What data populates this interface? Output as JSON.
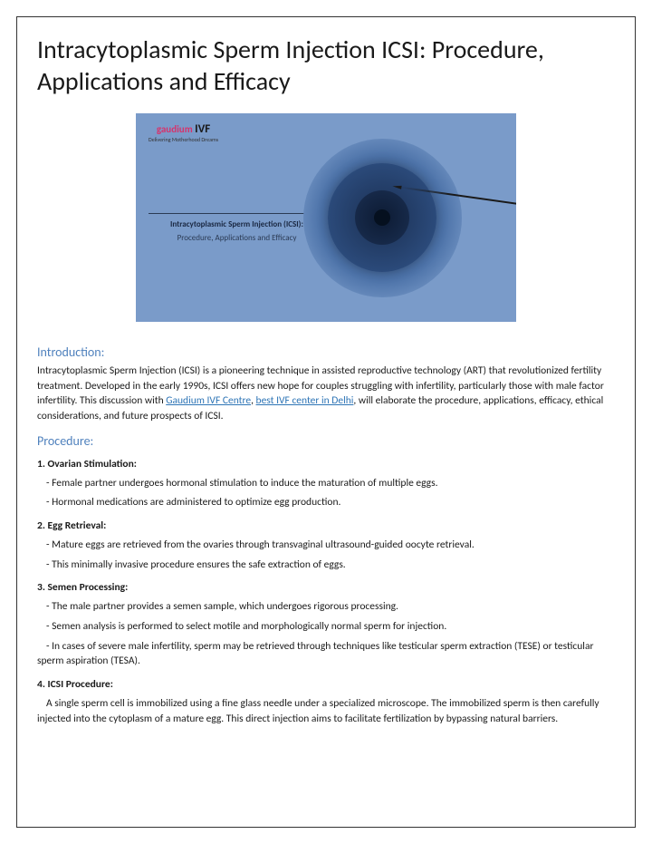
{
  "title": "Intracytoplasmic Sperm Injection ICSI: Procedure, Applications and Efficacy",
  "hero": {
    "logo_brand": "gaudium",
    "logo_ivf": "IVF",
    "logo_tag": "Delivering Motherhood Dreams",
    "heading": "Intracytoplasmic Sperm Injection (ICSI):",
    "sub": "Procedure, Applications and Efficacy",
    "bg_color": "#7a9bc9",
    "egg_colors": [
      "#7a9bc9",
      "#4c72a8",
      "#2b4a7a",
      "#1a2f52",
      "#0d1b33",
      "#05101f"
    ]
  },
  "sections": {
    "intro_head": "Introduction:",
    "intro_pre": "Intracytoplasmic Sperm Injection (ICSI) is a pioneering technique in assisted reproductive technology (ART) that revolutionized fertility treatment. Developed in the early 1990s, ICSI offers new hope for couples struggling with infertility, particularly those with male factor infertility. This discussion with ",
    "link1": "Gaudium IVF Centre",
    "sep1": ", ",
    "link2": "best IVF center in Delhi",
    "sep2": ", ",
    "intro_post": "will elaborate the procedure, applications, efficacy, ethical considerations, and future prospects of ICSI.",
    "proc_head": "Procedure:"
  },
  "steps": [
    {
      "head": "1. Ovarian Stimulation:",
      "subs": [
        "- Female partner undergoes hormonal stimulation to induce the maturation of multiple eggs.",
        "- Hormonal medications are administered to optimize egg production."
      ]
    },
    {
      "head": "2. Egg Retrieval:",
      "subs": [
        "- Mature eggs are retrieved from the ovaries through transvaginal ultrasound-guided oocyte retrieval.",
        "- This minimally invasive procedure ensures the safe extraction of eggs."
      ]
    },
    {
      "head": "3. Semen Processing:",
      "subs": [
        "- The male partner provides a semen sample, which undergoes rigorous processing.",
        "- Semen analysis is performed to select motile and morphologically normal sperm for injection.",
        "- In cases of severe male infertility, sperm may be retrieved through techniques like testicular sperm extraction (TESE) or testicular sperm aspiration (TESA)."
      ]
    },
    {
      "head": "4. ICSI Procedure:",
      "intro": "A single sperm cell is immobilized using a fine glass needle under a specialized microscope. The immobilized sperm is then carefully injected into the cytoplasm of a mature egg. This direct injection aims to facilitate fertilization by bypassing natural barriers.",
      "subs": []
    }
  ],
  "colors": {
    "heading_blue": "#4f81bd",
    "link_blue": "#2e75b6",
    "text": "#1a1a1a",
    "border": "#333333"
  }
}
